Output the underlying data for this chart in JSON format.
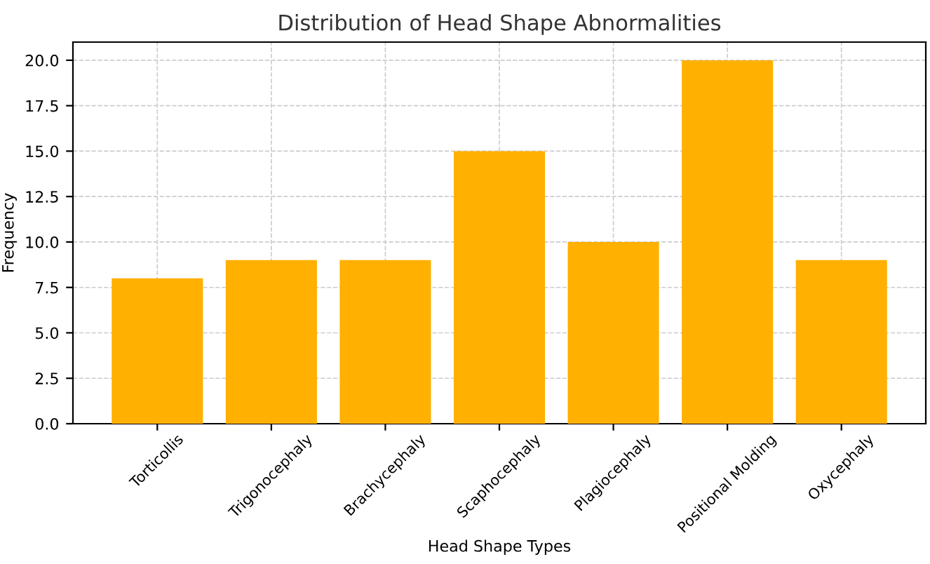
{
  "chart_data": {
    "type": "bar",
    "title": "Distribution of Head Shape Abnormalities",
    "xlabel": "Head Shape Types",
    "ylabel": "Frequency",
    "categories": [
      "Torticollis",
      "Trigonocephaly",
      "Brachycephaly",
      "Scaphocephaly",
      "Plagiocephaly",
      "Positional Molding",
      "Oxycephaly"
    ],
    "values": [
      8,
      9,
      9,
      15,
      10,
      20,
      9
    ],
    "color": "#ffb000",
    "ylim": [
      0,
      21
    ],
    "yticks": [
      {
        "value": 0,
        "label": "0.0"
      },
      {
        "value": 2.5,
        "label": "2.5"
      },
      {
        "value": 5,
        "label": "5.0"
      },
      {
        "value": 7.5,
        "label": "7.5"
      },
      {
        "value": 10,
        "label": "10.0"
      },
      {
        "value": 12.5,
        "label": "12.5"
      },
      {
        "value": 15,
        "label": "15.0"
      },
      {
        "value": 17.5,
        "label": "17.5"
      },
      {
        "value": 20,
        "label": "20.0"
      }
    ],
    "grid": true
  }
}
